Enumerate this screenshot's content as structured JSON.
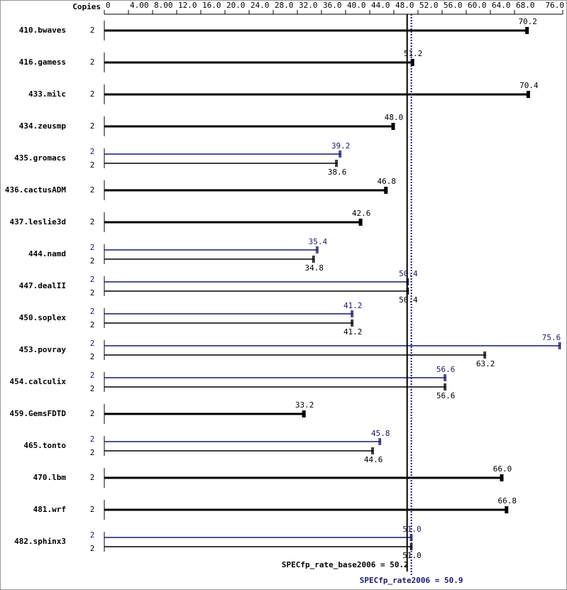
{
  "chart_data": {
    "type": "bar",
    "orientation": "horizontal",
    "copies_header": "Copies",
    "categories": [
      "410.bwaves",
      "416.gamess",
      "433.milc",
      "434.zeusmp",
      "435.gromacs",
      "436.cactusADM",
      "437.leslie3d",
      "444.namd",
      "447.dealII",
      "450.soplex",
      "453.povray",
      "454.calculix",
      "459.GemsFDTD",
      "465.tonto",
      "470.lbm",
      "481.wrf",
      "482.sphinx3"
    ],
    "series": [
      {
        "color": "#000000",
        "copies": [
          2,
          2,
          2,
          2,
          2,
          2,
          2,
          2,
          2,
          2,
          2,
          2,
          2,
          2,
          2,
          2,
          2
        ],
        "values": [
          70.2,
          51.2,
          70.4,
          48.0,
          38.6,
          46.8,
          42.6,
          34.8,
          50.4,
          41.2,
          63.2,
          56.6,
          33.2,
          44.6,
          66.0,
          66.8,
          51.0
        ],
        "value_labels": [
          "70.2",
          "51.2",
          "70.4",
          "48.0",
          "38.6",
          "46.8",
          "42.6",
          "34.8",
          "50.4",
          "41.2",
          "63.2",
          "56.6",
          "33.2",
          "44.6",
          "66.0",
          "66.8",
          "51.0"
        ]
      },
      {
        "color": "#191970",
        "copies": [
          null,
          null,
          null,
          null,
          2,
          null,
          null,
          2,
          2,
          2,
          2,
          2,
          null,
          2,
          null,
          null,
          2
        ],
        "values": [
          null,
          null,
          null,
          null,
          39.2,
          null,
          null,
          35.4,
          50.4,
          41.2,
          75.6,
          56.6,
          null,
          45.8,
          null,
          null,
          51.0
        ],
        "value_labels": [
          null,
          null,
          null,
          null,
          "39.2",
          null,
          null,
          "35.4",
          "50.4",
          "41.2",
          "75.6",
          "56.6",
          null,
          "45.8",
          null,
          null,
          "51.0"
        ]
      }
    ],
    "xlim": [
      0,
      76
    ],
    "xticks": [
      0,
      {
        "value": 4,
        "label": "4.00"
      },
      {
        "value": 8,
        "label": "8.00"
      },
      {
        "value": 12,
        "label": "12.0"
      },
      {
        "value": 16,
        "label": "16.0"
      },
      {
        "value": 20,
        "label": "20.0"
      },
      {
        "value": 24,
        "label": "24.0"
      },
      {
        "value": 28,
        "label": "28.0"
      },
      {
        "value": 32,
        "label": "32.0"
      },
      {
        "value": 36,
        "label": "36.0"
      },
      {
        "value": 40,
        "label": "40.0"
      },
      {
        "value": 44,
        "label": "44.0"
      },
      {
        "value": 48,
        "label": "48.0"
      },
      {
        "value": 52,
        "label": "52.0"
      },
      {
        "value": 56,
        "label": "56.0"
      },
      {
        "value": 60,
        "label": "60.0"
      },
      {
        "value": 64,
        "label": "64.0"
      },
      {
        "value": 68,
        "label": "68.0"
      },
      {
        "value": 76,
        "label": "76.0"
      }
    ],
    "summary": [
      {
        "label": "SPECfp_rate_base2006 = 50.2",
        "value": 50.2,
        "color": "#000000"
      },
      {
        "label": "SPECfp_rate2006 = 50.9",
        "value": 50.9,
        "color": "#191970"
      }
    ]
  }
}
